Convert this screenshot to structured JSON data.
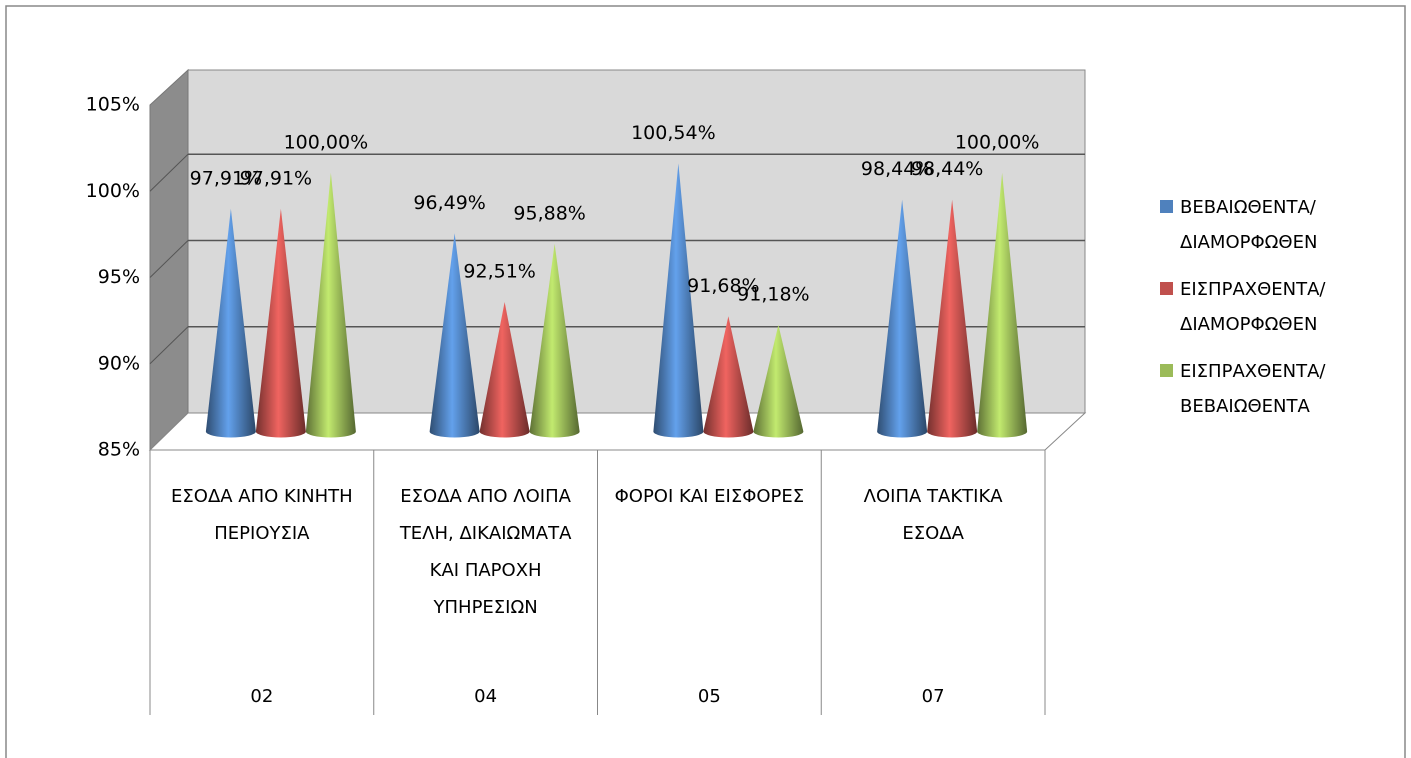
{
  "chart_data": {
    "type": "cone",
    "categories": [
      "ΕΣΟΔΑ ΑΠΟ ΚΙΝΗΤΗ ΠΕΡΙΟΥΣΙΑ",
      "ΕΣΟΔΑ ΑΠΟ ΛΟΙΠΑ ΤΕΛΗ, ΔΙΚΑΙΩΜΑΤΑ ΚΑΙ ΠΑΡΟΧΗ ΥΠΗΡΕΣΙΩΝ",
      "ΦΟΡΟΙ ΚΑΙ ΕΙΣΦΟΡΕΣ",
      "ΛΟΙΠΑ ΤΑΚΤΙΚΑ ΕΣΟΔΑ"
    ],
    "codes": [
      "02",
      "04",
      "05",
      "07"
    ],
    "series": [
      {
        "name": "ΒΕΒΑΙΩΘΕΝΤΑ/ ΔΙΑΜΟΡΦΩΘΕΝ",
        "color": "#4f81bd",
        "values": [
          97.91,
          96.49,
          100.54,
          98.44
        ],
        "value_labels": [
          "97,91%",
          "96,49%",
          "100,54%",
          "98,44%"
        ]
      },
      {
        "name": "ΕΙΣΠΡΑΧΘΕΝΤΑ/ ΔΙΑΜΟΡΦΩΘΕΝ",
        "color": "#c0504d",
        "values": [
          97.91,
          92.51,
          91.68,
          98.44
        ],
        "value_labels": [
          "97,91%",
          "92,51%",
          "91,68%",
          "98,44%"
        ]
      },
      {
        "name": "ΕΙΣΠΡΑΧΘΕΝΤΑ/ ΒΕΒΑΙΩΘΕΝΤΑ",
        "color": "#9bbb59",
        "values": [
          100.0,
          95.88,
          91.18,
          100.0
        ],
        "value_labels": [
          "100,00%",
          "95,88%",
          "91,18%",
          "100,00%"
        ]
      }
    ],
    "ylim": [
      85,
      105
    ],
    "yticks": [
      {
        "value": 85,
        "label": "85%"
      },
      {
        "value": 90,
        "label": "90%"
      },
      {
        "value": 95,
        "label": "95%"
      },
      {
        "value": 100,
        "label": "100%"
      },
      {
        "value": 105,
        "label": "105%"
      }
    ],
    "grid": true,
    "legend": "right"
  }
}
